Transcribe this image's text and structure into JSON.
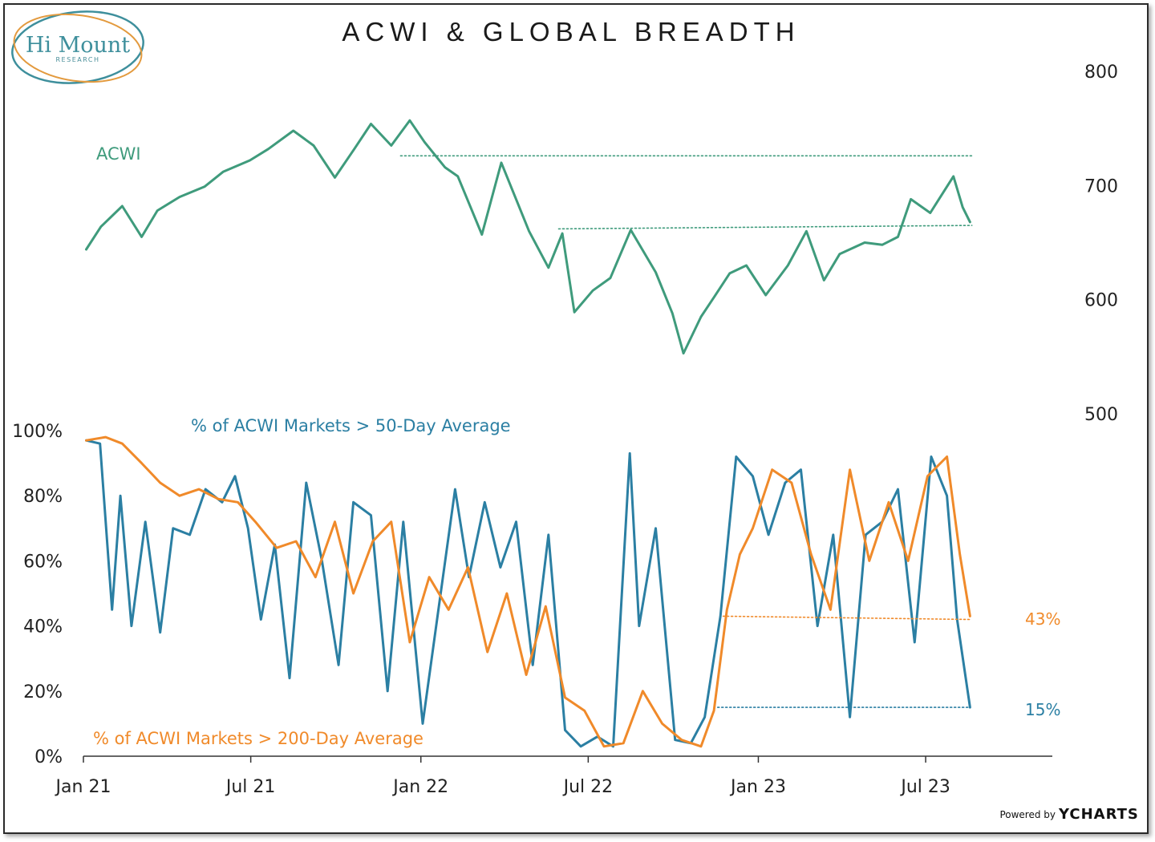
{
  "chart_data": [
    {
      "type": "line",
      "title": "ACWI & GLOBAL BREADTH",
      "series": [
        {
          "name": "ACWI",
          "color": "#3f9b7c",
          "x": [
            "2021-01-04",
            "2021-01-20",
            "2021-02-12",
            "2021-03-05",
            "2021-03-22",
            "2021-04-15",
            "2021-05-12",
            "2021-06-01",
            "2021-06-30",
            "2021-07-20",
            "2021-08-16",
            "2021-09-07",
            "2021-09-30",
            "2021-10-21",
            "2021-11-08",
            "2021-11-30",
            "2021-12-20",
            "2022-01-05",
            "2022-01-27",
            "2022-02-10",
            "2022-03-08",
            "2022-03-29",
            "2022-04-28",
            "2022-05-19",
            "2022-06-03",
            "2022-06-16",
            "2022-07-06",
            "2022-07-25",
            "2022-08-16",
            "2022-09-12",
            "2022-09-30",
            "2022-10-12",
            "2022-10-31",
            "2022-11-14",
            "2022-12-01",
            "2022-12-19",
            "2023-01-09",
            "2023-02-02",
            "2023-02-22",
            "2023-03-13",
            "2023-03-30",
            "2023-04-26",
            "2023-05-15",
            "2023-06-01",
            "2023-06-15",
            "2023-07-06",
            "2023-07-31",
            "2023-08-10",
            "2023-08-18"
          ],
          "values": [
            644,
            664,
            682,
            655,
            678,
            690,
            699,
            712,
            722,
            732,
            748,
            735,
            707,
            732,
            754,
            735,
            757,
            738,
            716,
            708,
            657,
            720,
            660,
            628,
            658,
            589,
            608,
            619,
            661,
            624,
            588,
            553,
            585,
            602,
            623,
            630,
            604,
            630,
            660,
            617,
            640,
            650,
            648,
            655,
            688,
            676,
            708,
            681,
            668
          ]
        },
        {
          "name": "",
          "color": "#3f9b7c",
          "x": [
            "2021-12-10",
            "2023-08-20"
          ],
          "values": [
            726,
            726
          ]
        },
        {
          "name": "",
          "color": "#3f9b7c",
          "x": [
            "2022-05-30",
            "2023-08-20"
          ],
          "values": [
            662,
            665
          ]
        }
      ],
      "yticks": [
        "800",
        "700",
        "600",
        "500"
      ],
      "ylim": [
        500,
        800
      ],
      "xlabel": "",
      "ylabel": "",
      "legend": "inline"
    },
    {
      "type": "line",
      "series": [
        {
          "name": "% of ACWI Markets > 50-Day Average",
          "color": "#2b7fa3",
          "x": [
            "2021-01-04",
            "2021-01-19",
            "2021-02-01",
            "2021-02-10",
            "2021-02-22",
            "2021-03-09",
            "2021-03-25",
            "2021-04-08",
            "2021-04-26",
            "2021-05-13",
            "2021-05-31",
            "2021-06-14",
            "2021-06-28",
            "2021-07-12",
            "2021-07-27",
            "2021-08-12",
            "2021-08-30",
            "2021-09-16",
            "2021-10-04",
            "2021-10-20",
            "2021-11-08",
            "2021-11-26",
            "2021-12-13",
            "2022-01-03",
            "2022-01-20",
            "2022-02-07",
            "2022-02-22",
            "2022-03-11",
            "2022-03-28",
            "2022-04-14",
            "2022-05-02",
            "2022-05-19",
            "2022-06-06",
            "2022-06-23",
            "2022-07-11",
            "2022-07-28",
            "2022-08-15",
            "2022-08-25",
            "2022-09-12",
            "2022-10-03",
            "2022-10-20",
            "2022-11-04",
            "2022-11-21",
            "2022-12-08",
            "2022-12-26",
            "2023-01-12",
            "2023-01-30",
            "2023-02-16",
            "2023-03-06",
            "2023-03-23",
            "2023-04-10",
            "2023-04-27",
            "2023-05-15",
            "2023-06-01",
            "2023-06-19",
            "2023-07-07",
            "2023-07-24",
            "2023-08-04",
            "2023-08-18"
          ],
          "values": [
            97,
            96,
            45,
            80,
            40,
            72,
            38,
            70,
            68,
            82,
            78,
            86,
            70,
            42,
            65,
            24,
            84,
            60,
            28,
            78,
            74,
            20,
            72,
            10,
            45,
            82,
            55,
            78,
            58,
            72,
            28,
            68,
            8,
            3,
            6,
            3,
            93,
            40,
            70,
            5,
            4,
            12,
            43,
            92,
            86,
            68,
            84,
            88,
            40,
            68,
            12,
            68,
            72,
            82,
            35,
            92,
            80,
            42,
            15
          ],
          "end_label": "15%"
        },
        {
          "name": "% of ACWI Markets > 200-Day Average",
          "color": "#f08a2a",
          "x": [
            "2021-01-04",
            "2021-01-25",
            "2021-02-12",
            "2021-03-05",
            "2021-03-25",
            "2021-04-15",
            "2021-05-06",
            "2021-05-27",
            "2021-06-17",
            "2021-07-06",
            "2021-07-29",
            "2021-08-19",
            "2021-09-09",
            "2021-09-30",
            "2021-10-20",
            "2021-11-10",
            "2021-11-30",
            "2021-12-20",
            "2022-01-10",
            "2022-01-31",
            "2022-02-21",
            "2022-03-14",
            "2022-04-04",
            "2022-04-25",
            "2022-05-16",
            "2022-06-06",
            "2022-06-27",
            "2022-07-18",
            "2022-08-08",
            "2022-08-29",
            "2022-09-19",
            "2022-10-10",
            "2022-10-31",
            "2022-11-14",
            "2022-11-28",
            "2022-12-12",
            "2022-12-26",
            "2023-01-16",
            "2023-02-06",
            "2023-02-27",
            "2023-03-20",
            "2023-04-10",
            "2023-05-01",
            "2023-05-22",
            "2023-06-12",
            "2023-07-03",
            "2023-07-24",
            "2023-08-07",
            "2023-08-18"
          ],
          "values": [
            97,
            98,
            96,
            90,
            84,
            80,
            82,
            79,
            78,
            72,
            64,
            66,
            55,
            72,
            50,
            66,
            72,
            35,
            55,
            45,
            58,
            32,
            50,
            25,
            46,
            18,
            14,
            3,
            4,
            20,
            10,
            5,
            3,
            14,
            45,
            62,
            70,
            88,
            84,
            62,
            45,
            88,
            60,
            78,
            60,
            86,
            92,
            62,
            43
          ],
          "end_label": "43%"
        },
        {
          "name": "",
          "color": "#f08a2a",
          "x": [
            "2022-11-24",
            "2023-08-18"
          ],
          "values": [
            43,
            42
          ]
        },
        {
          "name": "",
          "color": "#2b7fa3",
          "x": [
            "2022-11-18",
            "2023-08-18"
          ],
          "values": [
            15,
            15
          ]
        }
      ],
      "yticks": [
        "100%",
        "80%",
        "60%",
        "40%",
        "20%",
        "0%"
      ],
      "ylim": [
        0,
        100
      ],
      "xticks": [
        "Jan 21",
        "Jul 21",
        "Jan 22",
        "Jul 22",
        "Jan 23",
        "Jul 23"
      ],
      "xlabel": "",
      "ylabel": ""
    }
  ],
  "logo": {
    "main": "Hi Mount",
    "sub": "RESEARCH"
  },
  "footer": {
    "powered_by": "Powered by",
    "brand": "YCHARTS"
  }
}
